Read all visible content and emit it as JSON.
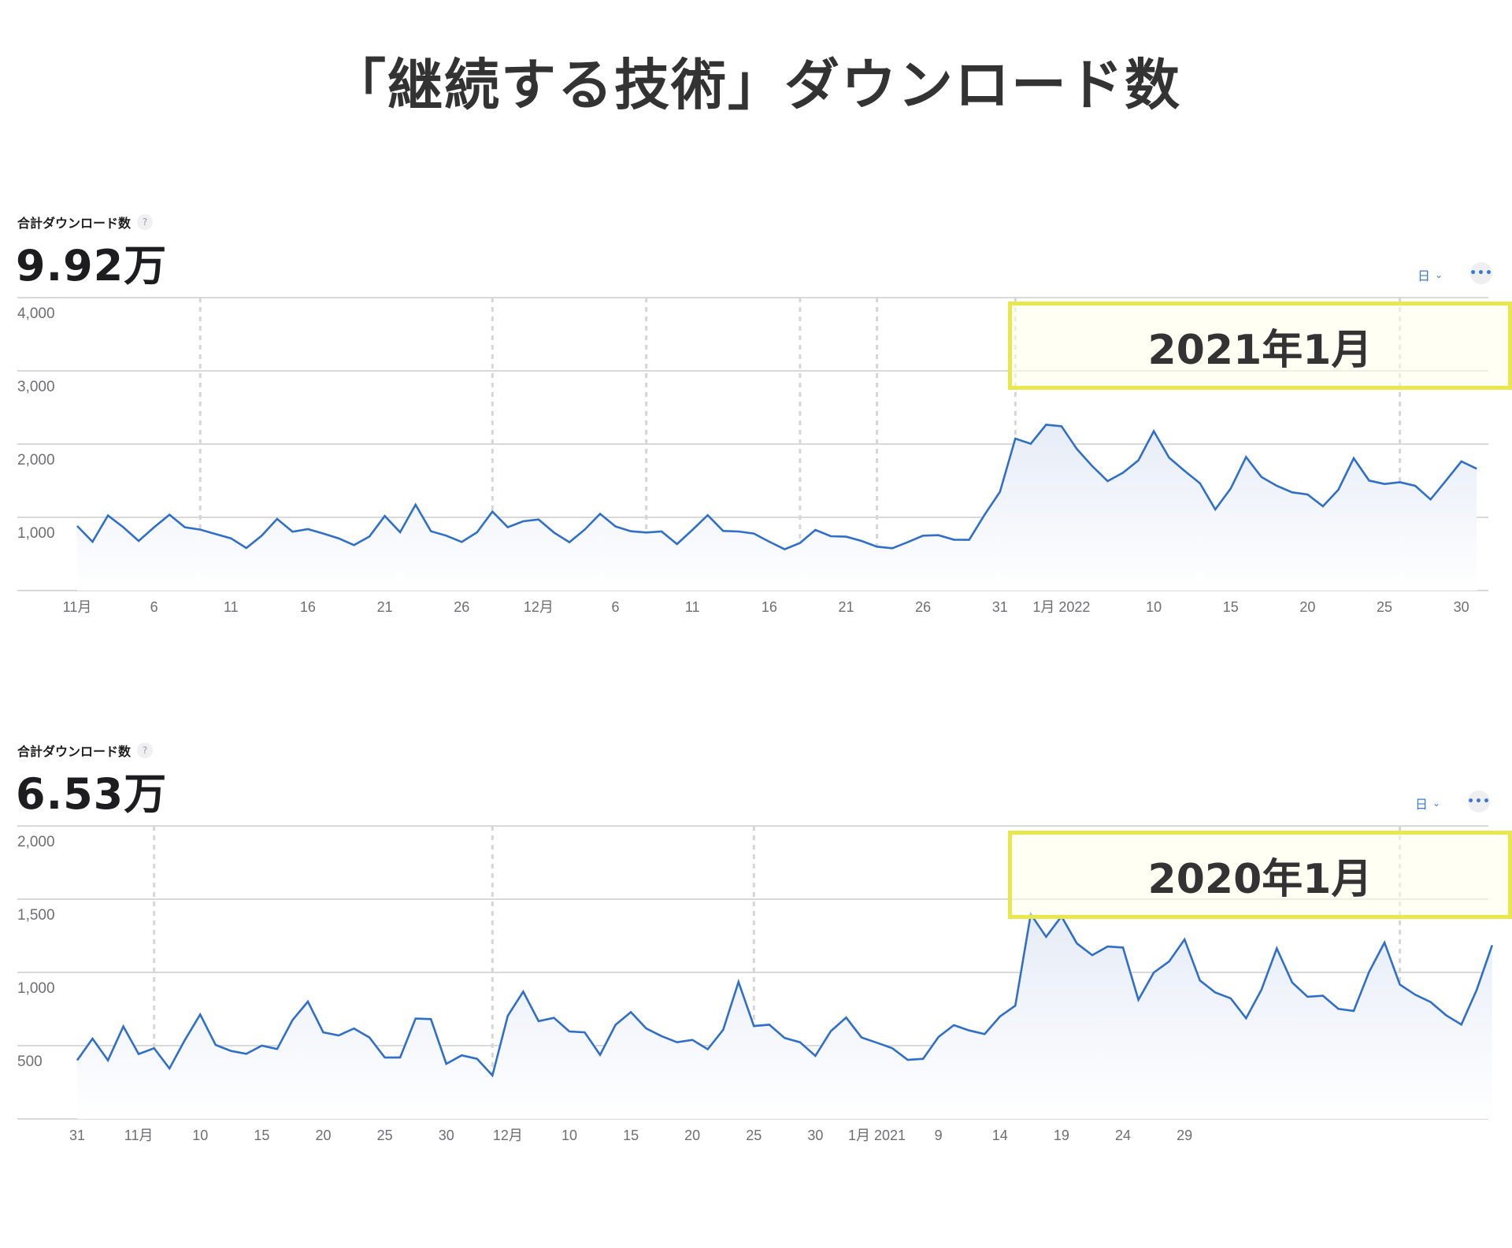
{
  "page": {
    "title": "「継続する技術」ダウンロード数"
  },
  "panels": [
    {
      "metric_label": "合計ダウンロード数",
      "help_icon": "?",
      "metric_value": "9.92万",
      "granularity_label": "日",
      "granularity_icon": "chevron-down-icon",
      "more_icon": "•••",
      "highlight_label": "2021年1月"
    },
    {
      "metric_label": "合計ダウンロード数",
      "help_icon": "?",
      "metric_value": "6.53万",
      "granularity_label": "日",
      "granularity_icon": "chevron-down-icon",
      "more_icon": "•••",
      "highlight_label": "2020年1月"
    }
  ],
  "colors": {
    "line": "#2f6fc9",
    "fill_top": "#e6ecf7",
    "fill_bottom": "#ffffff",
    "grid": "#d9d9d9",
    "axis_text": "#6e6e73",
    "highlight_border": "#e8e84c"
  },
  "chart_data": [
    {
      "type": "area",
      "title": "合計ダウンロード数 9.92万",
      "period": "2021-11-01 to 2022-01-31 (daily)",
      "xlabel": "",
      "ylabel": "",
      "ylim": [
        0,
        4000
      ],
      "yticks": [
        1000,
        2000,
        3000,
        4000
      ],
      "ytick_labels": [
        "1,000",
        "2,000",
        "3,000",
        "4,000"
      ],
      "grid": true,
      "xtick_labels": [
        {
          "index": 0,
          "label": "11月"
        },
        {
          "index": 5,
          "label": "6"
        },
        {
          "index": 10,
          "label": "11"
        },
        {
          "index": 15,
          "label": "16"
        },
        {
          "index": 20,
          "label": "21"
        },
        {
          "index": 25,
          "label": "26"
        },
        {
          "index": 30,
          "label": "12月"
        },
        {
          "index": 35,
          "label": "6"
        },
        {
          "index": 40,
          "label": "11"
        },
        {
          "index": 45,
          "label": "16"
        },
        {
          "index": 50,
          "label": "21"
        },
        {
          "index": 55,
          "label": "26"
        },
        {
          "index": 60,
          "label": "31"
        },
        {
          "index": 64,
          "label": "1月 2022"
        },
        {
          "index": 70,
          "label": "10"
        },
        {
          "index": 75,
          "label": "15"
        },
        {
          "index": 80,
          "label": "20"
        },
        {
          "index": 85,
          "label": "25"
        },
        {
          "index": 90,
          "label": "30"
        }
      ],
      "dotted_markers": [
        8,
        27,
        37,
        47,
        52,
        61,
        86
      ],
      "annotation": {
        "label": "2021年1月"
      },
      "series": [
        {
          "name": "ダウンロード数",
          "values": [
            882,
            667,
            1025,
            864,
            677,
            864,
            1036,
            864,
            832,
            771,
            713,
            581,
            749,
            978,
            803,
            839,
            778,
            713,
            620,
            738,
            1018,
            796,
            1172,
            810,
            749,
            663,
            796,
            1079,
            864,
            946,
            971,
            792,
            660,
            832,
            1047,
            875,
            810,
            792,
            806,
            634,
            828,
            1029,
            814,
            806,
            778,
            667,
            563,
            649,
            828,
            742,
            735,
            677,
            599,
            577,
            660,
            749,
            756,
            695,
            692,
            1036,
            1348,
            2075,
            2004,
            2265,
            2244,
            1932,
            1699,
            1495,
            1609,
            1778,
            2176,
            1814,
            1634,
            1466,
            1108,
            1394,
            1824,
            1552,
            1430,
            1341,
            1312,
            1151,
            1376,
            1806,
            1502,
            1455,
            1480,
            1430,
            1244,
            1502,
            1763,
            1663
          ]
        }
      ]
    },
    {
      "type": "area",
      "title": "合計ダウンロード数 6.53万",
      "period": "2020-10-31 to 2021-01-31 (daily)",
      "xlabel": "",
      "ylabel": "",
      "ylim": [
        0,
        2000
      ],
      "yticks": [
        500,
        1000,
        1500,
        2000
      ],
      "ytick_labels": [
        "500",
        "1,000",
        "1,500",
        "2,000"
      ],
      "grid": true,
      "xtick_labels": [
        {
          "index": 0,
          "label": "31"
        },
        {
          "index": 4,
          "label": "11月"
        },
        {
          "index": 8,
          "label": "10"
        },
        {
          "index": 12,
          "label": "15"
        },
        {
          "index": 16,
          "label": "20"
        },
        {
          "index": 20,
          "label": "25"
        },
        {
          "index": 24,
          "label": "30"
        },
        {
          "index": 28,
          "label": "12月"
        },
        {
          "index": 32,
          "label": "10"
        },
        {
          "index": 36,
          "label": "15"
        },
        {
          "index": 40,
          "label": "20"
        },
        {
          "index": 44,
          "label": "25"
        },
        {
          "index": 48,
          "label": "30"
        },
        {
          "index": 52,
          "label": "1月 2021"
        },
        {
          "index": 56,
          "label": "9"
        },
        {
          "index": 60,
          "label": "14"
        },
        {
          "index": 64,
          "label": "19"
        },
        {
          "index": 68,
          "label": "24"
        },
        {
          "index": 72,
          "label": "29"
        }
      ],
      "dotted_markers": [
        5,
        27,
        44,
        86
      ],
      "annotation": {
        "label": "2020年1月"
      },
      "series": [
        {
          "name": "ダウンロード数",
          "values": [
            400,
            548,
            400,
            631,
            443,
            482,
            344,
            538,
            713,
            505,
            464,
            444,
            500,
            477,
            674,
            801,
            591,
            570,
            617,
            556,
            419,
            419,
            685,
            681,
            376,
            434,
            410,
            296,
            703,
            869,
            667,
            690,
            597,
            591,
            437,
            642,
            729,
            617,
            565,
            523,
            539,
            475,
            608,
            935,
            634,
            643,
            552,
            523,
            430,
            599,
            692,
            556,
            520,
            482,
            403,
            410,
            559,
            640,
            604,
            579,
            699,
            773,
            1398,
            1243,
            1383,
            1198,
            1118,
            1177,
            1170,
            813,
            999,
            1075,
            1225,
            945,
            863,
            823,
            687,
            881,
            1164,
            931,
            834,
            841,
            751,
            737,
            1003,
            1204,
            917,
            848,
            798,
            708,
            644,
            881,
            1186
          ]
        }
      ]
    }
  ]
}
